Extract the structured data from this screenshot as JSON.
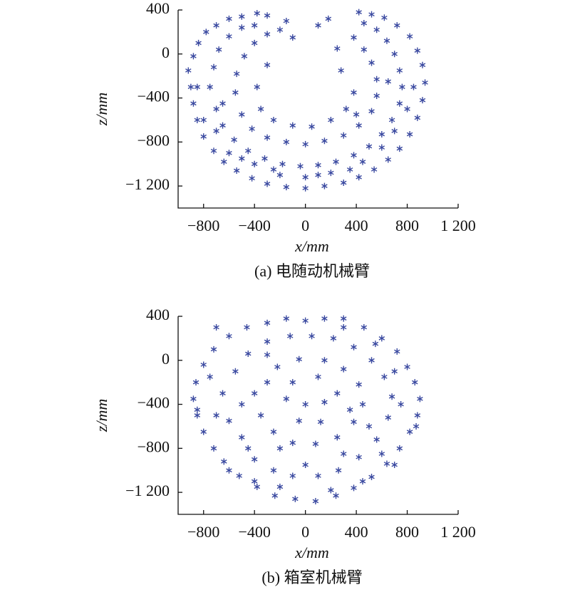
{
  "chart_data": [
    {
      "type": "scatter",
      "xlabel": "x/mm",
      "ylabel": "z/mm",
      "caption": "(a) 电随动机械臂",
      "color": "#3a49a0",
      "xlim": [
        -1000,
        1200
      ],
      "ylim": [
        -1400,
        400
      ],
      "xticks": [
        {
          "value": -800,
          "label": "−800"
        },
        {
          "value": -400,
          "label": "−400"
        },
        0,
        400,
        800,
        {
          "value": 1200,
          "label": "1 200"
        }
      ],
      "yticks": [
        400,
        0,
        {
          "value": -400,
          "label": "−400"
        },
        {
          "value": -800,
          "label": "−800"
        },
        {
          "value": -1200,
          "label": "−1 200"
        }
      ],
      "x": [
        -900,
        -920,
        -880,
        -850,
        -800,
        -720,
        -640,
        -540,
        -420,
        -300,
        -150,
        0,
        150,
        300,
        420,
        540,
        650,
        740,
        820,
        880,
        920,
        940,
        920,
        880,
        820,
        720,
        620,
        520,
        420,
        -880,
        -840,
        -780,
        -700,
        -600,
        -500,
        -380,
        -300,
        -750,
        -700,
        -650,
        -560,
        -450,
        -320,
        -180,
        -40,
        100,
        240,
        380,
        500,
        600,
        680,
        740,
        760,
        740,
        700,
        640,
        560,
        460,
        -720,
        -680,
        -600,
        -500,
        -400,
        -550,
        -500,
        -420,
        -300,
        -150,
        0,
        150,
        300,
        420,
        520,
        560,
        560,
        520,
        460,
        380,
        -540,
        -480,
        -400,
        -300,
        -200,
        -350,
        -250,
        -100,
        50,
        200,
        320,
        380,
        -380,
        -300,
        280,
        250,
        -150,
        100,
        180,
        -100,
        400,
        -600,
        -200,
        100,
        350,
        600,
        -800,
        800,
        -650,
        650,
        -400,
        -250,
        0,
        200,
        450,
        -500,
        700,
        -700,
        -850,
        850
      ],
      "values": [
        -300,
        -150,
        -450,
        -600,
        -750,
        -880,
        -980,
        -1060,
        -1130,
        -1180,
        -1210,
        -1220,
        -1200,
        -1170,
        -1120,
        -1050,
        -960,
        -860,
        -730,
        -580,
        -420,
        -260,
        -100,
        30,
        160,
        260,
        330,
        360,
        380,
        -20,
        100,
        200,
        260,
        320,
        340,
        370,
        350,
        -300,
        -500,
        -650,
        -780,
        -880,
        -950,
        -1000,
        -1020,
        -1010,
        -980,
        -920,
        -840,
        -730,
        -600,
        -450,
        -300,
        -150,
        0,
        120,
        220,
        280,
        -120,
        40,
        160,
        240,
        260,
        -350,
        -550,
        -680,
        -760,
        -800,
        -820,
        -790,
        -740,
        -650,
        -520,
        -380,
        -230,
        -80,
        40,
        150,
        -180,
        -20,
        100,
        180,
        220,
        -500,
        -600,
        -650,
        -660,
        -600,
        -500,
        -350,
        -300,
        -100,
        -150,
        50,
        300,
        260,
        320,
        150,
        -550,
        -900,
        -1100,
        -1100,
        -1050,
        -850,
        -600,
        -500,
        -450,
        -250,
        -1000,
        -1050,
        -1120,
        -1080,
        -980,
        -950,
        -700,
        -700,
        -300,
        -300
      ]
    },
    {
      "type": "scatter",
      "xlabel": "x/mm",
      "ylabel": "z/mm",
      "caption": "(b) 箱室机械臂",
      "color": "#3a49a0",
      "xlim": [
        -1000,
        1200
      ],
      "ylim": [
        -1400,
        400
      ],
      "xticks": [
        {
          "value": -800,
          "label": "−800"
        },
        {
          "value": -400,
          "label": "−400"
        },
        0,
        400,
        800,
        {
          "value": 1200,
          "label": "1 200"
        }
      ],
      "yticks": [
        400,
        0,
        {
          "value": -400,
          "label": "−400"
        },
        {
          "value": -800,
          "label": "−800"
        },
        {
          "value": -1200,
          "label": "−1 200"
        }
      ],
      "x": [
        -880,
        -850,
        -800,
        -720,
        -640,
        -520,
        -380,
        -240,
        -80,
        80,
        240,
        380,
        520,
        640,
        740,
        820,
        880,
        900,
        860,
        800,
        720,
        600,
        460,
        300,
        150,
        0,
        -150,
        -300,
        -460,
        -600,
        -720,
        -800,
        -860,
        -650,
        -600,
        -500,
        -400,
        -250,
        -100,
        100,
        260,
        420,
        560,
        650,
        680,
        620,
        520,
        380,
        220,
        50,
        -120,
        -300,
        -450,
        -550,
        -400,
        -350,
        -250,
        -100,
        80,
        250,
        380,
        450,
        420,
        300,
        150,
        -50,
        -220,
        -300,
        -150,
        0,
        150,
        250,
        -50,
        120,
        -200,
        300,
        -600,
        700,
        -700,
        750,
        -750,
        700,
        -400,
        450,
        -200,
        200,
        0,
        -500,
        500,
        -300,
        300,
        -700,
        550,
        -850,
        870,
        100,
        -100,
        350,
        -450,
        600
      ],
      "values": [
        -350,
        -500,
        -650,
        -800,
        -920,
        -1050,
        -1150,
        -1230,
        -1260,
        -1280,
        -1230,
        -1160,
        -1060,
        -940,
        -800,
        -650,
        -500,
        -350,
        -200,
        -60,
        80,
        200,
        300,
        380,
        380,
        360,
        380,
        340,
        300,
        220,
        100,
        -40,
        -200,
        -300,
        -550,
        -700,
        -900,
        -1000,
        -1050,
        -1050,
        -1000,
        -880,
        -720,
        -520,
        -330,
        -150,
        0,
        120,
        200,
        220,
        220,
        170,
        60,
        -100,
        -300,
        -500,
        -650,
        -750,
        -760,
        -700,
        -560,
        -400,
        -220,
        -80,
        0,
        10,
        -60,
        -200,
        -350,
        -400,
        -380,
        -300,
        -550,
        -560,
        -800,
        -850,
        -1000,
        -950,
        -500,
        -400,
        -150,
        -100,
        -1100,
        -1100,
        -1150,
        -1180,
        -950,
        -400,
        -600,
        50,
        300,
        300,
        150,
        -450,
        -600,
        -150,
        -200,
        -450,
        -800,
        -850
      ]
    }
  ]
}
